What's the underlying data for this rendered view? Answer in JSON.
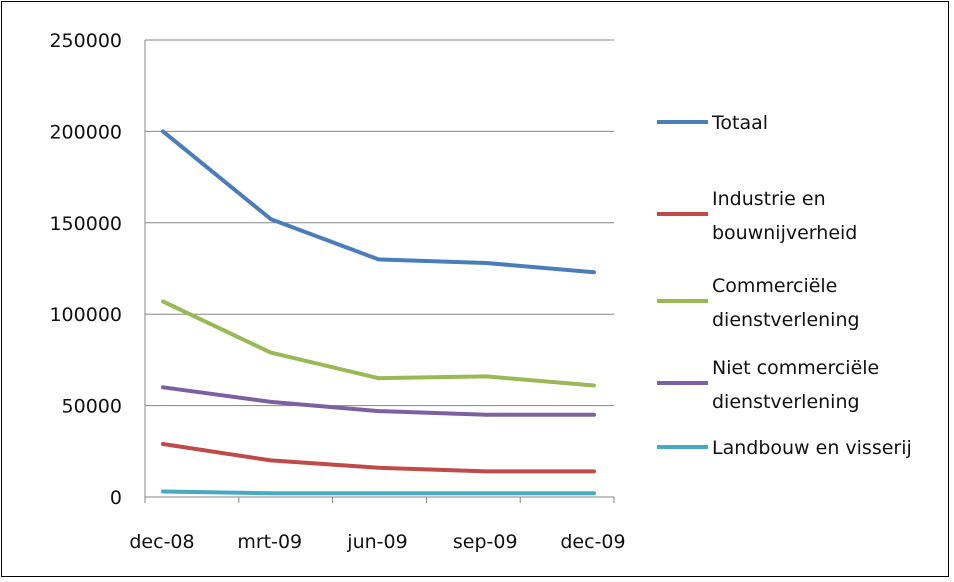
{
  "chart_data": {
    "type": "line",
    "title": "",
    "xlabel": "",
    "ylabel": "",
    "categories": [
      "dec-08",
      "mrt-09",
      "jun-09",
      "sep-09",
      "dec-09"
    ],
    "ylim": [
      0,
      250000
    ],
    "yticks": [
      "0",
      "50000",
      "100000",
      "150000",
      "200000",
      "250000"
    ],
    "grid": true,
    "legend_position": "right",
    "series": [
      {
        "name": "Totaal",
        "name_lines": [
          "Totaal"
        ],
        "color": "#4a7ebb",
        "values": [
          200000,
          152000,
          130000,
          128000,
          123000
        ]
      },
      {
        "name": "Industrie en bouwnijverheid",
        "name_lines": [
          "Industrie en",
          "bouwnijverheid"
        ],
        "color": "#be4b48",
        "values": [
          29000,
          20000,
          16000,
          14000,
          14000
        ]
      },
      {
        "name": "Commerciële dienstverlening",
        "name_lines": [
          "Commerciële",
          "dienstverlening"
        ],
        "color": "#98b954",
        "values": [
          107000,
          79000,
          65000,
          66000,
          61000
        ]
      },
      {
        "name": "Niet commerciële dienstverlening",
        "name_lines": [
          "Niet commerciële",
          "dienstverlening"
        ],
        "color": "#7d60a0",
        "values": [
          60000,
          52000,
          47000,
          45000,
          45000
        ]
      },
      {
        "name": "Landbouw en visserij",
        "name_lines": [
          "Landbouw en visserij"
        ],
        "color": "#46aac5",
        "values": [
          3000,
          2000,
          2000,
          2000,
          2000
        ]
      }
    ]
  }
}
